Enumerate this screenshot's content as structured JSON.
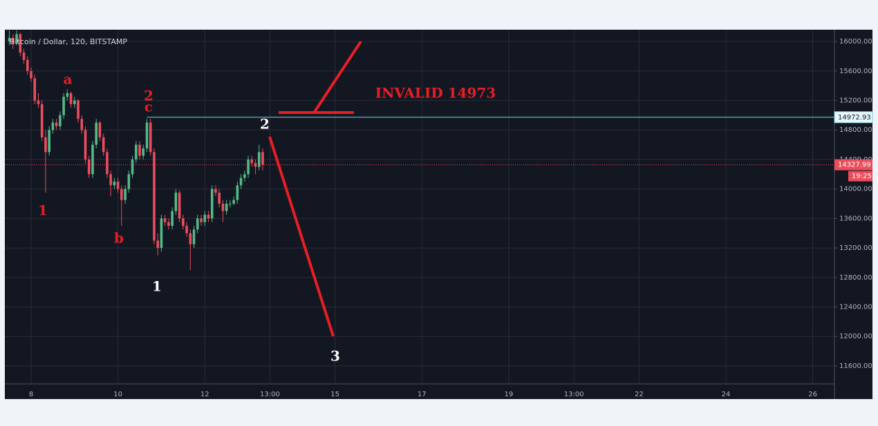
{
  "chart_data": {
    "type": "candlestick",
    "title": "Bitcoin / Dollar, 120, BITSTAMP",
    "x": [
      7.5,
      7.583,
      7.667,
      7.75,
      7.833,
      7.917,
      8,
      8.083,
      8.167,
      8.25,
      8.333,
      8.417,
      8.5,
      8.583,
      8.667,
      8.75,
      8.833,
      8.917,
      9,
      9.083,
      9.167,
      9.25,
      9.333,
      9.417,
      9.5,
      9.583,
      9.667,
      9.75,
      9.833,
      9.917,
      10,
      10.083,
      10.167,
      10.25,
      10.333,
      10.417,
      10.5,
      10.583,
      10.667,
      10.75,
      10.833,
      10.917,
      11,
      11.083,
      11.167,
      11.25,
      11.333,
      11.417,
      11.5,
      11.583,
      11.667,
      11.75,
      11.833,
      11.917,
      12,
      12.083,
      12.167,
      12.25,
      12.333,
      12.417,
      12.5,
      12.583,
      12.667,
      12.75,
      12.833,
      12.917,
      13,
      13.083,
      13.167,
      13.25,
      13.333
    ],
    "open": [
      16000,
      16050,
      15980,
      16100,
      15850,
      15750,
      15600,
      15500,
      15200,
      15150,
      14700,
      14500,
      14800,
      14900,
      14850,
      15000,
      15250,
      15300,
      15150,
      15200,
      14950,
      14800,
      14400,
      14200,
      14600,
      14900,
      14700,
      14500,
      14200,
      14050,
      14100,
      14000,
      13850,
      14000,
      14200,
      14400,
      14600,
      14450,
      14550,
      14900,
      14500,
      13300,
      13200,
      13600,
      13550,
      13500,
      13700,
      13950,
      13600,
      13500,
      13400,
      13250,
      13450,
      13600,
      13550,
      13650,
      13600,
      14000,
      13950,
      13800,
      13700,
      13800,
      13800,
      13850,
      14050,
      14150,
      14200,
      14400,
      14350,
      14300,
      14500
    ],
    "high": [
      16150,
      16100,
      16150,
      16120,
      15900,
      15800,
      15650,
      15550,
      15300,
      15200,
      14800,
      14850,
      14950,
      14950,
      15050,
      15300,
      15350,
      15320,
      15250,
      15220,
      15000,
      14850,
      14450,
      14650,
      14950,
      14920,
      14750,
      14550,
      14250,
      14150,
      14150,
      14050,
      14050,
      14250,
      14450,
      14650,
      14650,
      14600,
      14950,
      14950,
      14550,
      13400,
      13650,
      13650,
      13600,
      13750,
      14000,
      13980,
      13650,
      13550,
      13450,
      13500,
      13650,
      13650,
      13700,
      13700,
      14050,
      14050,
      14000,
      13850,
      13850,
      13850,
      13900,
      14100,
      14200,
      14250,
      14450,
      14450,
      14400,
      14600,
      14550
    ],
    "low": [
      15950,
      15900,
      15950,
      15800,
      15700,
      15550,
      15450,
      15150,
      15100,
      14650,
      13950,
      14450,
      14750,
      14800,
      14800,
      14950,
      15200,
      15100,
      15100,
      14900,
      14750,
      14350,
      14150,
      14150,
      14550,
      14650,
      14450,
      14150,
      13900,
      14000,
      13950,
      13500,
      13800,
      13950,
      14150,
      14350,
      14400,
      14400,
      14500,
      14450,
      13250,
      13100,
      13150,
      13500,
      13450,
      13450,
      13650,
      13550,
      13450,
      13350,
      12900,
      13200,
      13400,
      13500,
      13500,
      13550,
      13550,
      13900,
      13750,
      13550,
      13650,
      13750,
      13780,
      13800,
      14000,
      14100,
      14150,
      14300,
      14200,
      14250,
      14250
    ],
    "close": [
      16050,
      15980,
      16100,
      15850,
      15750,
      15600,
      15500,
      15200,
      15150,
      14700,
      14500,
      14800,
      14900,
      14850,
      15000,
      15250,
      15300,
      15150,
      15200,
      14950,
      14800,
      14400,
      14200,
      14600,
      14900,
      14700,
      14500,
      14200,
      14050,
      14100,
      14000,
      13850,
      14000,
      14200,
      14400,
      14600,
      14450,
      14550,
      14900,
      14500,
      13300,
      13200,
      13600,
      13550,
      13500,
      13700,
      13950,
      13600,
      13500,
      13400,
      13250,
      13450,
      13600,
      13550,
      13650,
      13600,
      14000,
      13950,
      13800,
      13700,
      13800,
      13800,
      13850,
      14050,
      14150,
      14200,
      14400,
      14350,
      14300,
      14500,
      14327.99
    ],
    "up_color": "#53b987",
    "down_color": "#eb4d5c",
    "xlim": [
      7.395,
      26.5
    ],
    "xticks": [
      8,
      10,
      12,
      {
        "value": 13.5,
        "label": "13:00"
      },
      15,
      17,
      19,
      {
        "value": 20.5,
        "label": "13:00"
      },
      22,
      24,
      26
    ],
    "ylim": [
      11150,
      16160
    ],
    "yticks": [
      {
        "value": 11600,
        "label": "11600.00"
      },
      {
        "value": 12000,
        "label": "12000.00"
      },
      {
        "value": 12400,
        "label": "12400.00"
      },
      {
        "value": 12800,
        "label": "12800.00"
      },
      {
        "value": 13200,
        "label": "13200.00"
      },
      {
        "value": 13600,
        "label": "13600.00"
      },
      {
        "value": 14000,
        "label": "14000.00"
      },
      {
        "value": 14400,
        "label": "14400.00"
      },
      {
        "value": 14800,
        "label": "14800.00"
      },
      {
        "value": 15200,
        "label": "15200.00"
      },
      {
        "value": 15600,
        "label": "15600.00"
      },
      {
        "value": 16000,
        "label": "16000.00"
      }
    ],
    "grid": true,
    "level_line": {
      "value": 14972.93,
      "label": "14972.93",
      "color": "#7fd3e3",
      "start_x": 10.667
    },
    "last_price": {
      "value": 14327.99,
      "label": "14327.99",
      "color": "#eb4d5c"
    },
    "countdown": "19:25",
    "annotations": [
      "1",
      "a",
      "b",
      "2",
      "c",
      "1",
      "2",
      "3",
      "INVALID 14973"
    ]
  }
}
